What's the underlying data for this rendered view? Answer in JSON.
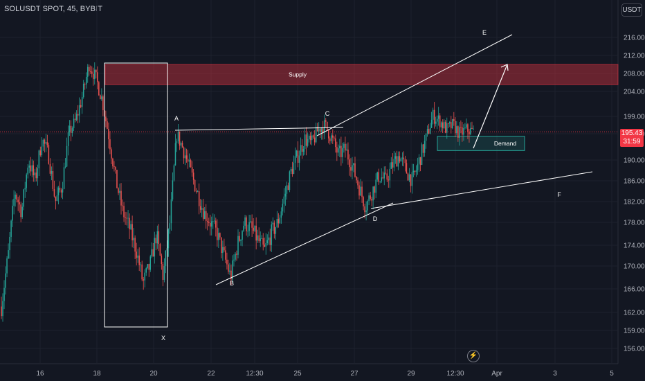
{
  "header": {
    "symbol": "SOLUSDT SPOT, 45, BYBIT"
  },
  "price_scale": {
    "currency": "USDT"
  },
  "last_price": {
    "value": "195.43",
    "countdown": "31:59"
  },
  "colors": {
    "background": "#131722",
    "bull": "#26a69a",
    "bear": "#ef5350",
    "supply": "#f23645",
    "annotation": "#ffffff",
    "last_price": "#f23645"
  },
  "icons": {
    "replay": "flash-icon"
  },
  "chart_data": {
    "type": "candlestick",
    "title": "SOLUSDT SPOT, 45, BYBIT",
    "ylim": [
      153.5,
      219
    ],
    "y_ticks": [
      "216.00",
      "212.00",
      "208.00",
      "204.00",
      "199.00",
      "195.00",
      "190.00",
      "186.00",
      "182.00",
      "178.00",
      "174.00",
      "170.00",
      "166.00",
      "162.00",
      "159.00",
      "156.00"
    ],
    "x_ticks": [
      "16",
      "18",
      "20",
      "22",
      "12:30",
      "25",
      "27",
      "29",
      "12:30",
      "Apr",
      "3",
      "5"
    ],
    "price_path": [
      [
        0,
        163
      ],
      [
        1,
        172
      ],
      [
        2,
        184
      ],
      [
        3,
        180
      ],
      [
        4,
        190
      ],
      [
        5,
        186
      ],
      [
        6,
        194
      ],
      [
        7,
        191
      ],
      [
        8,
        182
      ],
      [
        9,
        185
      ],
      [
        10,
        195
      ],
      [
        11,
        198
      ],
      [
        12,
        203
      ],
      [
        13,
        210
      ],
      [
        14,
        207
      ],
      [
        15,
        202
      ],
      [
        16,
        194
      ],
      [
        17,
        186
      ],
      [
        18,
        180
      ],
      [
        19,
        177
      ],
      [
        20,
        173
      ],
      [
        21,
        167
      ],
      [
        22,
        170
      ],
      [
        23,
        176
      ],
      [
        24,
        168
      ],
      [
        25,
        178
      ],
      [
        26,
        195
      ],
      [
        27,
        192
      ],
      [
        28,
        188
      ],
      [
        29,
        184
      ],
      [
        30,
        180
      ],
      [
        31,
        178
      ],
      [
        32,
        176
      ],
      [
        33,
        172
      ],
      [
        34,
        168
      ],
      [
        35,
        174
      ],
      [
        36,
        178
      ],
      [
        37,
        177
      ],
      [
        38,
        175
      ],
      [
        39,
        173
      ],
      [
        40,
        176
      ],
      [
        41,
        178
      ],
      [
        42,
        183
      ],
      [
        43,
        188
      ],
      [
        44,
        191
      ],
      [
        45,
        194
      ],
      [
        46,
        193
      ],
      [
        47,
        196
      ],
      [
        48,
        197
      ],
      [
        49,
        194
      ],
      [
        50,
        191
      ],
      [
        51,
        192
      ],
      [
        52,
        189
      ],
      [
        53,
        185
      ],
      [
        54,
        181
      ],
      [
        55,
        184
      ],
      [
        56,
        187
      ],
      [
        57,
        186
      ],
      [
        58,
        189
      ],
      [
        59,
        191
      ],
      [
        60,
        188
      ],
      [
        61,
        186
      ],
      [
        62,
        190
      ],
      [
        63,
        194
      ],
      [
        64,
        199
      ],
      [
        65,
        198
      ],
      [
        66,
        196
      ],
      [
        67,
        197
      ],
      [
        68,
        195
      ],
      [
        69,
        196
      ],
      [
        70,
        195.43
      ]
    ],
    "zones": [
      {
        "name": "Supply",
        "low": 205.5,
        "high": 210
      },
      {
        "name": "Demand",
        "low": 191.8,
        "high": 194.5
      }
    ],
    "annotations": [
      "X",
      "A",
      "B",
      "C",
      "D",
      "E",
      "F"
    ],
    "last_price": 195.43
  }
}
